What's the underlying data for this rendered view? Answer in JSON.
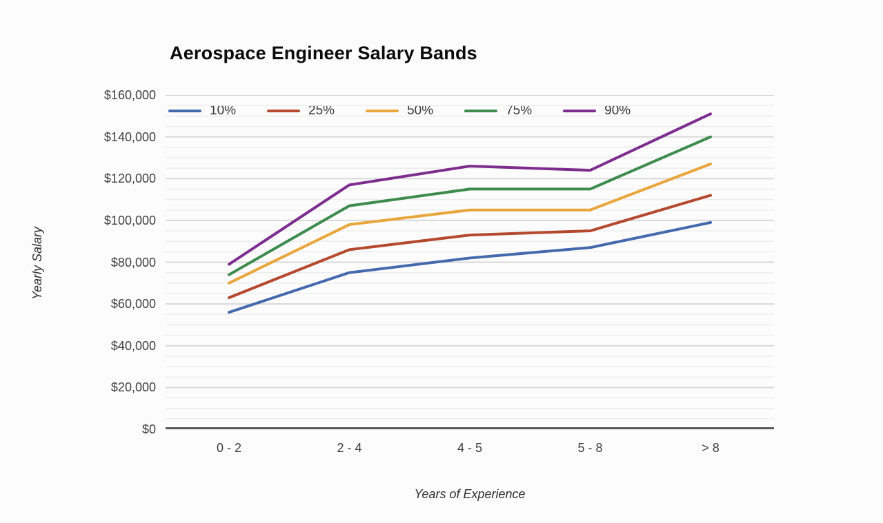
{
  "chart_data": {
    "type": "line",
    "title": "Aerospace Engineer Salary Bands",
    "xlabel": "Years of Experience",
    "ylabel": "Yearly Salary",
    "categories": [
      "0 - 2",
      "2 - 4",
      "4 - 5",
      "5 - 8",
      "> 8"
    ],
    "series": [
      {
        "name": "10%",
        "color": "#4569ad",
        "values": [
          56000,
          75000,
          82000,
          87000,
          99000
        ]
      },
      {
        "name": "25%",
        "color": "#b5492f",
        "values": [
          63000,
          86000,
          93000,
          95000,
          112000
        ]
      },
      {
        "name": "50%",
        "color": "#e9a63c",
        "values": [
          70000,
          98000,
          105000,
          105000,
          127000
        ]
      },
      {
        "name": "75%",
        "color": "#3d8b4d",
        "values": [
          74000,
          107000,
          115000,
          115000,
          140000
        ]
      },
      {
        "name": "90%",
        "color": "#7d2d8e",
        "values": [
          79000,
          117000,
          126000,
          124000,
          151000
        ]
      }
    ],
    "ylim": [
      0,
      160000
    ],
    "ytick_step": 20000,
    "minor_gridline_step": 5000,
    "yticks": [
      "$160,000",
      "$140,000",
      "$120,000",
      "$100,000",
      "$80,000",
      "$60,000",
      "$40,000",
      "$20,000",
      "$0"
    ],
    "legend_position": "top-left-inside",
    "grid": true,
    "colors": {
      "background": "#fcfcfc",
      "major_gridline": "#d8d8d8",
      "minor_gridline": "#ededed",
      "axis_baseline": "#595959",
      "tick_text": "#3f3f3f",
      "title_text": "#0b0b0b"
    }
  }
}
